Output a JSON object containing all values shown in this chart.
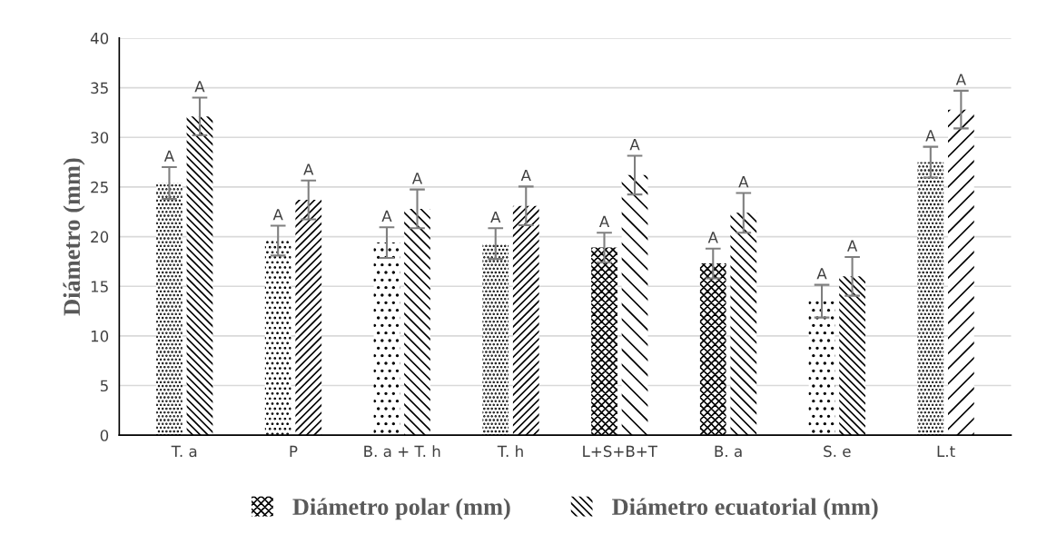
{
  "chart_data": {
    "type": "bar",
    "ylabel": "Diámetro (mm)",
    "categories": [
      "T. a",
      "P",
      "B. a + T. h",
      "T. h",
      "L+S+B+T",
      "B. a",
      "S. e",
      "L.t"
    ],
    "series": [
      {
        "name": "Diámetro polar (mm)",
        "color": "#000000",
        "values": [
          25.4,
          19.6,
          19.4,
          19.3,
          18.9,
          17.3,
          13.5,
          27.5
        ],
        "errors": [
          1.6,
          1.5,
          1.55,
          1.55,
          1.5,
          1.5,
          1.65,
          1.55
        ],
        "value_labels": [
          "A",
          "A",
          "A",
          "A",
          "A",
          "A",
          "A",
          "A"
        ]
      },
      {
        "name": "Diámetro ecuatorial (mm)",
        "color": "#000000",
        "values": [
          32.1,
          23.7,
          22.8,
          23.1,
          26.2,
          22.4,
          16.0,
          32.8
        ],
        "errors": [
          1.9,
          1.95,
          1.95,
          1.95,
          1.95,
          2.0,
          1.95,
          1.9
        ],
        "value_labels": [
          "A",
          "A",
          "A",
          "A",
          "A",
          "A",
          "A",
          "A"
        ]
      }
    ],
    "ylim": [
      0,
      40
    ],
    "yticks": [
      0,
      5,
      10,
      15,
      20,
      25,
      30,
      35,
      40
    ],
    "grid": "y",
    "legend": "bottom"
  }
}
